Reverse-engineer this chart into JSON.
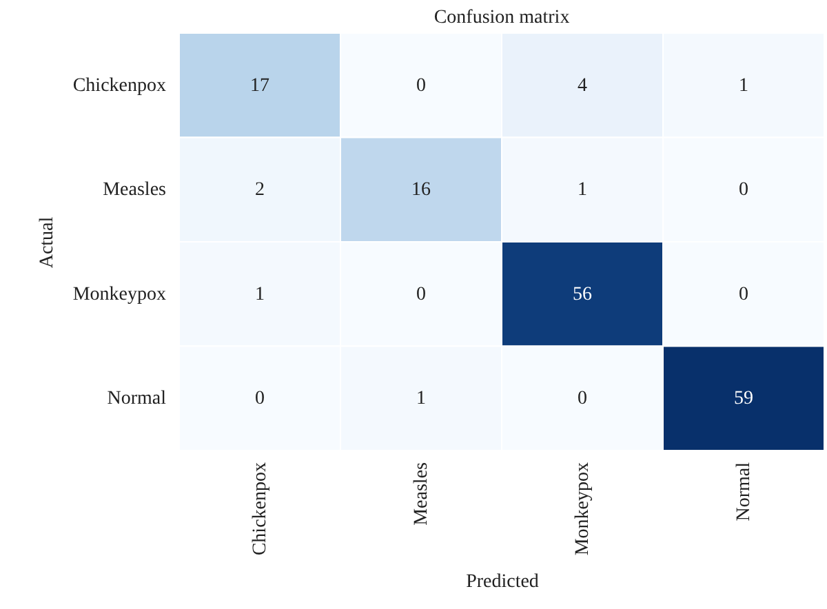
{
  "chart_data": {
    "type": "heatmap",
    "title": "Confusion matrix",
    "xlabel": "Predicted",
    "data_labels": true,
    "ylabel": "Actual",
    "categories": [
      "Chickenpox",
      "Measles",
      "Monkeypox",
      "Normal"
    ],
    "y_categories": [
      "Chickenpox",
      "Measles",
      "Monkeypox",
      "Normal"
    ],
    "cells": [
      [
        17,
        0,
        4,
        1
      ],
      [
        2,
        16,
        1,
        0
      ],
      [
        1,
        0,
        56,
        0
      ],
      [
        0,
        1,
        0,
        59
      ]
    ]
  }
}
